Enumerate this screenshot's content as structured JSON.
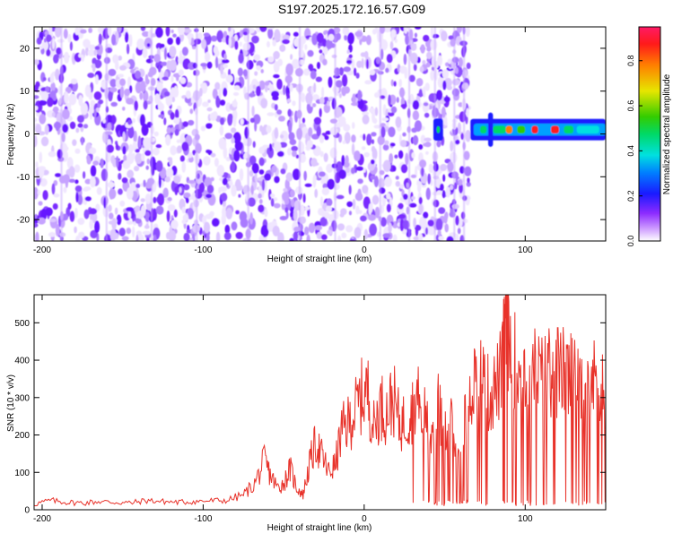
{
  "title": "S197.2025.172.16.57.G09",
  "chart_data": [
    {
      "type": "heatmap",
      "xlabel": "Height of straight line (km)",
      "ylabel": "Frequency (Hz)",
      "xlim": [
        -205,
        150
      ],
      "ylim": [
        -25,
        25
      ],
      "xticks": [
        -200,
        -100,
        0,
        100
      ],
      "yticks": [
        -20,
        -10,
        0,
        10,
        20
      ],
      "colorbar": {
        "label": "Normalized spectral amplitude",
        "range": [
          0,
          0.95
        ],
        "ticks": [
          "0.0",
          "0.2",
          "0.4",
          "0.6",
          "0.8"
        ],
        "tick_values": [
          0.0,
          0.2,
          0.4,
          0.6,
          0.8
        ]
      },
      "grid": false,
      "notes": "noise pattern of weak purple amplitudes from -205 to ~65 km; strong ridge near 0-2 Hz from ~45 km and ~65-150 km"
    },
    {
      "type": "line",
      "xlabel": "Height of straight line (km)",
      "ylabel": "SNR (10 * v/v)",
      "xlim": [
        -205,
        150
      ],
      "ylim": [
        0,
        575
      ],
      "xticks": [
        -200,
        -100,
        0,
        100
      ],
      "yticks": [
        0,
        100,
        200,
        300,
        400,
        500
      ],
      "series": [
        {
          "color": "#e8322a",
          "x": [
            -205,
            -195,
            -185,
            -175,
            -165,
            -155,
            -145,
            -135,
            -125,
            -115,
            -105,
            -95,
            -85,
            -75,
            -68,
            -62,
            -58,
            -54,
            -50,
            -46,
            -42,
            -38,
            -34,
            -30,
            -26,
            -22,
            -18,
            -14,
            -10,
            -6,
            -2,
            2,
            6,
            10,
            14,
            18,
            22,
            26,
            30,
            34,
            38,
            42,
            46,
            50,
            54,
            58,
            62,
            66,
            70,
            74,
            78,
            82,
            86,
            88,
            90,
            94,
            98,
            102,
            106,
            110,
            114,
            118,
            122,
            126,
            130,
            134,
            138,
            142,
            146,
            150
          ],
          "y": [
            15,
            25,
            20,
            18,
            22,
            20,
            18,
            25,
            22,
            20,
            22,
            24,
            25,
            40,
            70,
            130,
            90,
            60,
            70,
            110,
            60,
            40,
            120,
            180,
            140,
            100,
            120,
            210,
            230,
            260,
            300,
            320,
            220,
            280,
            260,
            300,
            230,
            240,
            270,
            310,
            240,
            210,
            280,
            200,
            230,
            120,
            260,
            330,
            360,
            340,
            300,
            330,
            380,
            560,
            450,
            390,
            380,
            360,
            370,
            350,
            360,
            380,
            370,
            360,
            350,
            370,
            360,
            340,
            360,
            320
          ]
        }
      ],
      "grid": false
    }
  ]
}
